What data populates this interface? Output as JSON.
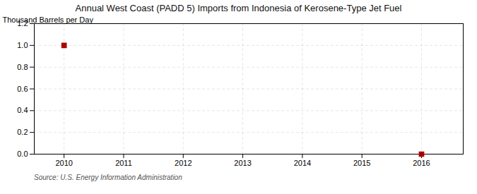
{
  "chart_data": {
    "type": "scatter",
    "title": "Annual West Coast (PADD 5) Imports from Indonesia of Kerosene-Type Jet Fuel",
    "ylabel": "Thousand Barrels per Day",
    "annotations": [
      "Source: U.S. Energy Information Administration"
    ],
    "x": [
      2010,
      2016
    ],
    "values": [
      1.0,
      0.0
    ],
    "color": "#aa0000",
    "marker": "square",
    "xlim": [
      2009.5,
      2016.7
    ],
    "ylim": [
      0.0,
      1.2
    ],
    "xticks": [
      2010,
      2011,
      2012,
      2013,
      2014,
      2015,
      2016
    ],
    "yticks": [
      {
        "value": 0.0,
        "label": "0.0"
      },
      0.2,
      0.4,
      0.6,
      0.8,
      {
        "value": 1.0,
        "label": "1.0"
      },
      1.2
    ],
    "grid": true
  }
}
